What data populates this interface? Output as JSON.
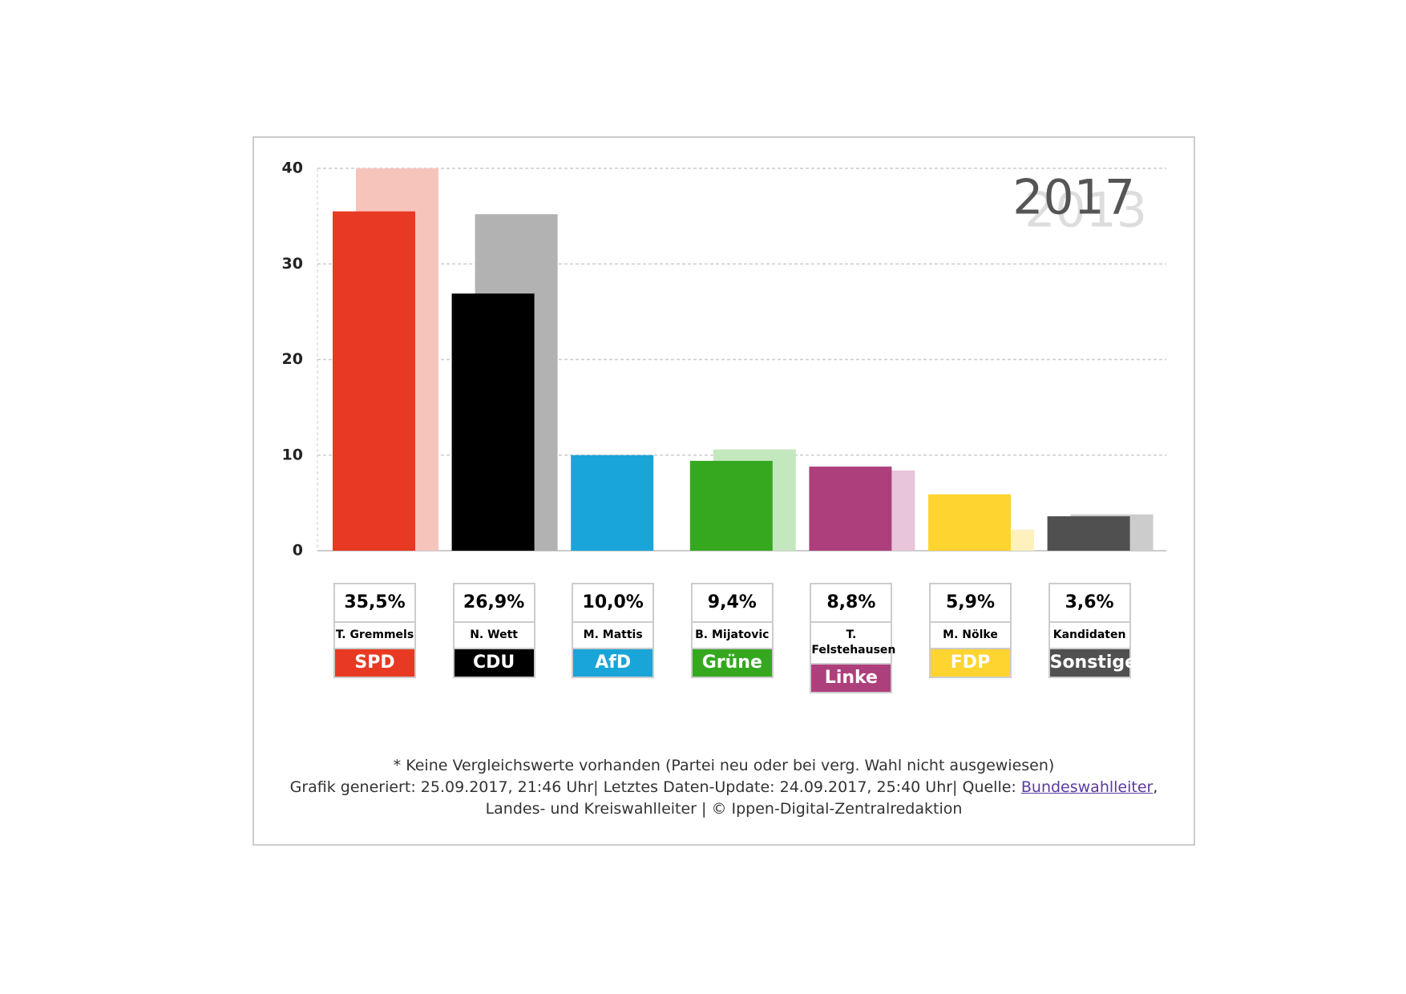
{
  "chart_data": {
    "type": "bar",
    "categories": [
      "SPD",
      "CDU",
      "AfD",
      "Grüne",
      "Linke",
      "FDP",
      "Sonstige"
    ],
    "candidates": [
      "T. Gremmels",
      "N. Wett",
      "M. Mattis",
      "B. Mijatovic",
      "T. Felstehausen",
      "M. Nölke",
      "Kandidaten"
    ],
    "series": [
      {
        "name": "2017",
        "color": "#555555",
        "colors": [
          "#e83a22",
          "#000000",
          "#1aa5d8",
          "#35a820",
          "#ad407c",
          "#fed430",
          "#505050"
        ],
        "values": [
          35.5,
          26.9,
          10.0,
          9.4,
          8.8,
          5.9,
          3.6
        ],
        "value_labels": [
          "35,5%",
          "26,9%",
          "10,0%",
          "9,4%",
          "8,8%",
          "5,9%",
          "3,6%"
        ]
      },
      {
        "name": "2013",
        "color": "#dddddd",
        "colors": [
          "#f7c4bc",
          "#b2b2b2",
          "#bfe5f4",
          "#c4e8bd",
          "#e8c5d8",
          "#fef1bd",
          "#cccccc"
        ],
        "values": [
          40,
          35.2,
          null,
          10.6,
          8.4,
          2.2,
          3.8
        ]
      }
    ],
    "ylim": [
      0,
      40
    ],
    "yticks": [
      0,
      10,
      20,
      30,
      40
    ],
    "grid": true,
    "footnote": "* Keine Vergleichswerte vorhanden (Partei neu oder bei verg. Wahl nicht ausgewiesen)",
    "source_prefix": "Grafik generiert: 25.09.2017, 21:46 Uhr| Letztes Daten-Update: 24.09.2017, 25:40 Uhr| Quelle: ",
    "source_link": "Bundeswahlleiter",
    "source_suffix": ", Landes- und Kreiswahlleiter | © Ippen-Digital-Zentralredaktion"
  }
}
